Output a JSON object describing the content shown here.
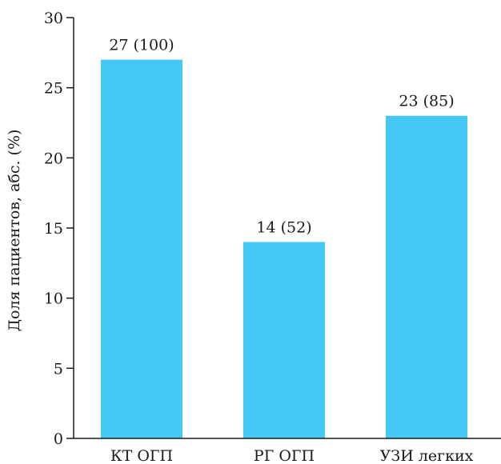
{
  "chart_data": {
    "type": "bar",
    "categories": [
      "КТ ОГП",
      "РГ ОГП",
      "УЗИ легких"
    ],
    "values": [
      27,
      14,
      23
    ],
    "data_labels": [
      "27 (100)",
      "14 (52)",
      "23 (85)"
    ],
    "title": "",
    "xlabel": "",
    "ylabel": "Доля пациентов, абс. (%)",
    "ylim": [
      0,
      30
    ],
    "yticks": [
      0,
      5,
      10,
      15,
      20,
      25,
      30
    ],
    "grid": false,
    "legend": "none",
    "bar_color": "#45c8f5",
    "axis_color": "#1a1a1a"
  }
}
